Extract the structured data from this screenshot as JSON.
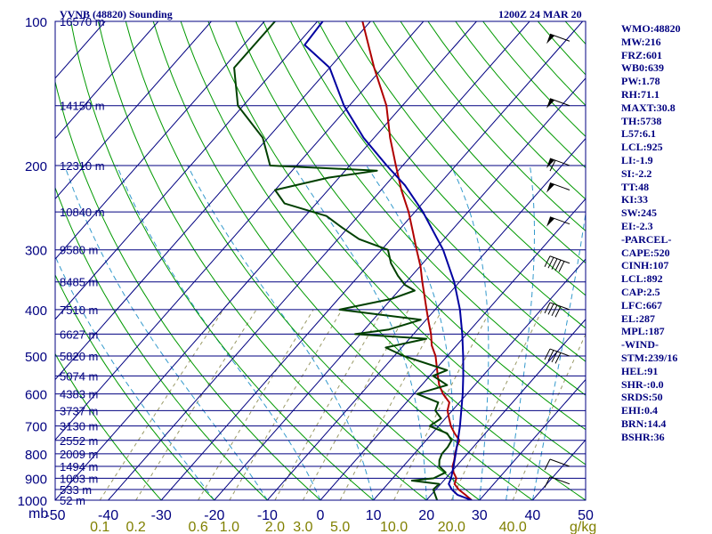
{
  "chart_data": {
    "type": "line",
    "title": "VVNB (48820) Sounding",
    "valid_time": "1200Z 24 MAR 20",
    "pressure_unit_label": "mb",
    "mixing_ratio_unit_label": "g/kg",
    "plim": [
      1000,
      100
    ],
    "tlim": [
      -50,
      50
    ],
    "pressure_ticks": [
      100,
      200,
      300,
      400,
      500,
      600,
      700,
      800,
      900,
      1000
    ],
    "temperature_ticks": [
      "-50",
      "-40",
      "-30",
      "-20",
      "-10",
      "0",
      "10",
      "20",
      "30",
      "40",
      "50"
    ],
    "mixing_ratio_ticks": [
      {
        "label": "0.1",
        "value": 0.1
      },
      {
        "label": "0.2",
        "value": 0.2
      },
      {
        "label": "0.6",
        "value": 0.6
      },
      {
        "label": "1.0",
        "value": 1.0
      },
      {
        "label": "2.0",
        "value": 2.0
      },
      {
        "label": "3.0",
        "value": 3.0
      },
      {
        "label": "5.0",
        "value": 5.0
      },
      {
        "label": "10.0",
        "value": 10.0
      },
      {
        "label": "20.0",
        "value": 20.0
      },
      {
        "label": "40.0",
        "value": 40.0
      }
    ],
    "height_levels": [
      {
        "p": 1000,
        "label": "52 m"
      },
      {
        "p": 950,
        "label": "533 m"
      },
      {
        "p": 900,
        "label": "1003 m"
      },
      {
        "p": 850,
        "label": "1494 m"
      },
      {
        "p": 800,
        "label": "2009 m"
      },
      {
        "p": 750,
        "label": "2552 m"
      },
      {
        "p": 700,
        "label": "3130 m"
      },
      {
        "p": 650,
        "label": "3737 m"
      },
      {
        "p": 600,
        "label": "4383 m"
      },
      {
        "p": 550,
        "label": "5074 m"
      },
      {
        "p": 500,
        "label": "5820 m"
      },
      {
        "p": 450,
        "label": "6627 m"
      },
      {
        "p": 400,
        "label": "7510 m"
      },
      {
        "p": 350,
        "label": "8485 m"
      },
      {
        "p": 300,
        "label": "9580 m"
      },
      {
        "p": 250,
        "label": "10840 m"
      },
      {
        "p": 200,
        "label": "12310 m"
      },
      {
        "p": 150,
        "label": "14150 m"
      },
      {
        "p": 100,
        "label": "16570 m"
      }
    ],
    "series": [
      {
        "key": "temperature",
        "color": "#b00000",
        "points": [
          [
            1000,
            28.5
          ],
          [
            975,
            26.5
          ],
          [
            950,
            24.3
          ],
          [
            925,
            22.6
          ],
          [
            900,
            22.0
          ],
          [
            875,
            20.5
          ],
          [
            850,
            19.3
          ],
          [
            825,
            18.6
          ],
          [
            800,
            17.7
          ],
          [
            775,
            16.9
          ],
          [
            750,
            16.3
          ],
          [
            725,
            14.2
          ],
          [
            700,
            12.3
          ],
          [
            675,
            10.7
          ],
          [
            650,
            9.1
          ],
          [
            625,
            8.1
          ],
          [
            600,
            5.5
          ],
          [
            575,
            3.3
          ],
          [
            550,
            1.5
          ],
          [
            525,
            -0.3
          ],
          [
            500,
            -2.2
          ],
          [
            475,
            -4.7
          ],
          [
            450,
            -6.7
          ],
          [
            425,
            -9.1
          ],
          [
            400,
            -11.6
          ],
          [
            375,
            -14.2
          ],
          [
            350,
            -17.0
          ],
          [
            325,
            -19.9
          ],
          [
            300,
            -23.4
          ],
          [
            275,
            -27.1
          ],
          [
            250,
            -31.2
          ],
          [
            225,
            -36.2
          ],
          [
            200,
            -41.3
          ],
          [
            175,
            -47.0
          ],
          [
            150,
            -53.0
          ],
          [
            125,
            -61.6
          ],
          [
            100,
            -71.5
          ]
        ]
      },
      {
        "key": "dewpoint",
        "color": "#004000",
        "points": [
          [
            1000,
            22.0
          ],
          [
            950,
            19.5
          ],
          [
            925,
            19.7
          ],
          [
            910,
            14.0
          ],
          [
            900,
            17.7
          ],
          [
            875,
            19.0
          ],
          [
            850,
            16.8
          ],
          [
            825,
            15.8
          ],
          [
            800,
            15.2
          ],
          [
            775,
            15.2
          ],
          [
            750,
            14.8
          ],
          [
            725,
            12.8
          ],
          [
            700,
            8.3
          ],
          [
            675,
            9.2
          ],
          [
            650,
            6.8
          ],
          [
            625,
            6.0
          ],
          [
            600,
            0.6
          ],
          [
            575,
            4.8
          ],
          [
            550,
            0.6
          ],
          [
            535,
            2.3
          ],
          [
            500,
            -8.2
          ],
          [
            480,
            -13.0
          ],
          [
            460,
            -6.8
          ],
          [
            450,
            -21.0
          ],
          [
            440,
            -15.4
          ],
          [
            420,
            -11.0
          ],
          [
            400,
            -28.0
          ],
          [
            380,
            -20.0
          ],
          [
            365,
            -17.0
          ],
          [
            355,
            -19.8
          ],
          [
            340,
            -22.6
          ],
          [
            320,
            -26.0
          ],
          [
            300,
            -28.8
          ],
          [
            285,
            -36.0
          ],
          [
            270,
            -41.0
          ],
          [
            255,
            -46.0
          ],
          [
            240,
            -56.0
          ],
          [
            225,
            -60.0
          ],
          [
            212,
            -52.0
          ],
          [
            205,
            -44.0
          ],
          [
            200,
            -65.0
          ],
          [
            175,
            -71.0
          ],
          [
            150,
            -81.0
          ],
          [
            125,
            -88.0
          ],
          [
            100,
            -88.0
          ]
        ]
      },
      {
        "key": "parcel",
        "color": "#0000a0",
        "points": [
          [
            1000,
            28.5
          ],
          [
            975,
            25.0
          ],
          [
            950,
            23.0
          ],
          [
            925,
            21.5
          ],
          [
            900,
            21.0
          ],
          [
            850,
            19.5
          ],
          [
            800,
            17.8
          ],
          [
            750,
            16.0
          ],
          [
            700,
            14.0
          ],
          [
            650,
            11.7
          ],
          [
            600,
            9.2
          ],
          [
            550,
            6.3
          ],
          [
            500,
            3.0
          ],
          [
            450,
            -0.8
          ],
          [
            400,
            -5.3
          ],
          [
            350,
            -11.0
          ],
          [
            300,
            -18.4
          ],
          [
            250,
            -28.5
          ],
          [
            220,
            -36.3
          ],
          [
            200,
            -43.0
          ],
          [
            175,
            -52.0
          ],
          [
            150,
            -61.0
          ],
          [
            125,
            -70.0
          ],
          [
            112,
            -78.5
          ],
          [
            100,
            -79.0
          ]
        ]
      }
    ],
    "wind_barbs": [
      {
        "p": 110,
        "speed_kt": 50
      },
      {
        "p": 150,
        "speed_kt": 50
      },
      {
        "p": 200,
        "speed_kt": 55
      },
      {
        "p": 225,
        "speed_kt": 50
      },
      {
        "p": 265,
        "speed_kt": 50
      },
      {
        "p": 320,
        "speed_kt": 45
      },
      {
        "p": 400,
        "speed_kt": 40
      },
      {
        "p": 500,
        "speed_kt": 35
      },
      {
        "p": 850,
        "speed_kt": 5
      },
      {
        "p": 925,
        "speed_kt": 5
      }
    ],
    "grid": true
  },
  "indices": [
    "WMO:48820",
    "MW:216",
    "FRZ:601",
    "WB0:639",
    "PW:1.78",
    "RH:71.1",
    "MAXT:30.8",
    "TH:5738",
    "L57:6.1",
    "LCL:925",
    "LI:-1.9",
    "SI:-2.2",
    "TT:48",
    "KI:33",
    "SW:245",
    "EI:-2.3",
    "-PARCEL-",
    "CAPE:520",
    "CINH:107",
    "LCL:892",
    "CAP:2.5",
    "LFC:667",
    "EL:287",
    "MPL:187",
    "-WIND-",
    "STM:239/16",
    "HEL:91",
    "SHR-:0.0",
    "SRDS:50",
    "EHI:0.4",
    "BRN:14.4",
    "BSHR:36"
  ],
  "colors": {
    "frame": "#000080",
    "isobar": "#000080",
    "isotherm": "#000080",
    "dry_adiabat": "#009900",
    "moist_adiabat": "#3399cc",
    "mixing_ratio": "#999966"
  }
}
